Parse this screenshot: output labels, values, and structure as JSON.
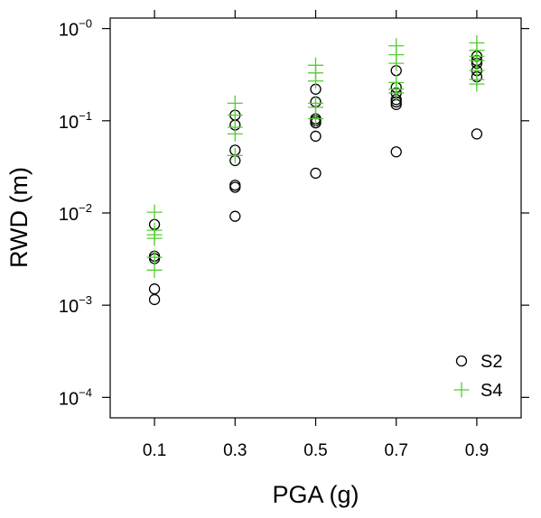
{
  "chart_data": {
    "type": "scatter",
    "xlabel": "PGA (g)",
    "ylabel": "RWD (m)",
    "x_ticks": [
      "0.1",
      "0.3",
      "0.5",
      "0.7",
      "0.9"
    ],
    "x_tick_values": [
      0.1,
      0.3,
      0.5,
      0.7,
      0.9
    ],
    "xlim": [
      -0.01,
      1.01
    ],
    "y_scale": "log",
    "ylim": [
      6e-05,
      0.0031
    ],
    "y_ticks": [
      {
        "base": "10",
        "exp": "−4",
        "value": 0.0001
      },
      {
        "base": "10",
        "exp": "−3",
        "value": 0.001
      },
      {
        "base": "10",
        "exp": "−2",
        "value": 0.01
      },
      {
        "base": "10",
        "exp": "−1",
        "value": 0.1
      },
      {
        "base": "10",
        "exp": "−0",
        "value": 1
      }
    ],
    "legend_position": "bottom-right",
    "series": [
      {
        "name": "S2",
        "marker": "circle",
        "color": "#000000",
        "points": [
          [
            0.1,
            0.0075
          ],
          [
            0.1,
            0.0034
          ],
          [
            0.1,
            0.0032
          ],
          [
            0.1,
            0.0015
          ],
          [
            0.1,
            0.00115
          ],
          [
            0.3,
            0.115
          ],
          [
            0.3,
            0.09
          ],
          [
            0.3,
            0.048
          ],
          [
            0.3,
            0.037
          ],
          [
            0.3,
            0.02
          ],
          [
            0.3,
            0.019
          ],
          [
            0.3,
            0.0092
          ],
          [
            0.5,
            0.22
          ],
          [
            0.5,
            0.16
          ],
          [
            0.5,
            0.105
          ],
          [
            0.5,
            0.1
          ],
          [
            0.5,
            0.095
          ],
          [
            0.5,
            0.068
          ],
          [
            0.5,
            0.027
          ],
          [
            0.7,
            0.35
          ],
          [
            0.7,
            0.23
          ],
          [
            0.7,
            0.2
          ],
          [
            0.7,
            0.17
          ],
          [
            0.7,
            0.16
          ],
          [
            0.7,
            0.15
          ],
          [
            0.7,
            0.046
          ],
          [
            0.9,
            0.5
          ],
          [
            0.9,
            0.45
          ],
          [
            0.9,
            0.42
          ],
          [
            0.9,
            0.35
          ],
          [
            0.9,
            0.3
          ],
          [
            0.9,
            0.072
          ]
        ]
      },
      {
        "name": "S4",
        "marker": "plus",
        "color": "#55cc33",
        "points": [
          [
            0.1,
            0.0102
          ],
          [
            0.1,
            0.0065
          ],
          [
            0.1,
            0.0058
          ],
          [
            0.1,
            0.0053
          ],
          [
            0.1,
            0.0033
          ],
          [
            0.1,
            0.0024
          ],
          [
            0.3,
            0.155
          ],
          [
            0.3,
            0.115
          ],
          [
            0.3,
            0.085
          ],
          [
            0.3,
            0.072
          ],
          [
            0.3,
            0.042
          ],
          [
            0.5,
            0.4
          ],
          [
            0.5,
            0.33
          ],
          [
            0.5,
            0.27
          ],
          [
            0.5,
            0.155
          ],
          [
            0.5,
            0.14
          ],
          [
            0.5,
            0.105
          ],
          [
            0.7,
            0.65
          ],
          [
            0.7,
            0.52
          ],
          [
            0.7,
            0.42
          ],
          [
            0.7,
            0.26
          ],
          [
            0.7,
            0.22
          ],
          [
            0.7,
            0.2
          ],
          [
            0.9,
            0.7
          ],
          [
            0.9,
            0.58
          ],
          [
            0.9,
            0.5
          ],
          [
            0.9,
            0.45
          ],
          [
            0.9,
            0.35
          ],
          [
            0.9,
            0.28
          ],
          [
            0.9,
            0.25
          ]
        ]
      }
    ]
  }
}
